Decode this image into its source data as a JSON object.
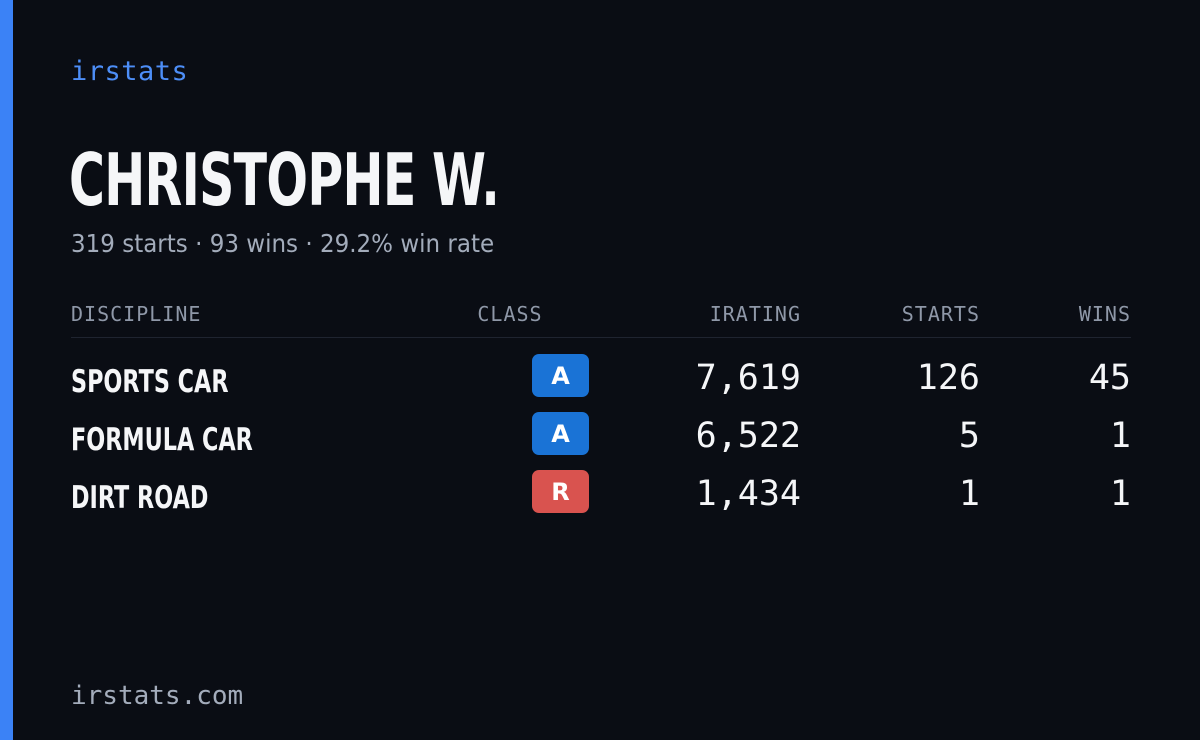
{
  "brand": "irstats",
  "driver": {
    "name": "CHRISTOPHE W.",
    "summary": "319 starts · 93 wins · 29.2% win rate"
  },
  "table": {
    "headers": {
      "discipline": "DISCIPLINE",
      "class": "CLASS",
      "irating": "IRATING",
      "starts": "STARTS",
      "wins": "WINS"
    },
    "rows": [
      {
        "discipline": "SPORTS CAR",
        "class": "A",
        "class_color": "#1a73d6",
        "irating": "7,619",
        "starts": "126",
        "wins": "45"
      },
      {
        "discipline": "FORMULA CAR",
        "class": "A",
        "class_color": "#1a73d6",
        "irating": "6,522",
        "starts": "5",
        "wins": "1"
      },
      {
        "discipline": "DIRT ROAD",
        "class": "R",
        "class_color": "#d9534f",
        "irating": "1,434",
        "starts": "1",
        "wins": "1"
      }
    ]
  },
  "footer": "irstats.com",
  "colors": {
    "accent": "#3b82f6",
    "background": "#0a0d14",
    "class_a": "#1a73d6",
    "class_r": "#d9534f"
  }
}
